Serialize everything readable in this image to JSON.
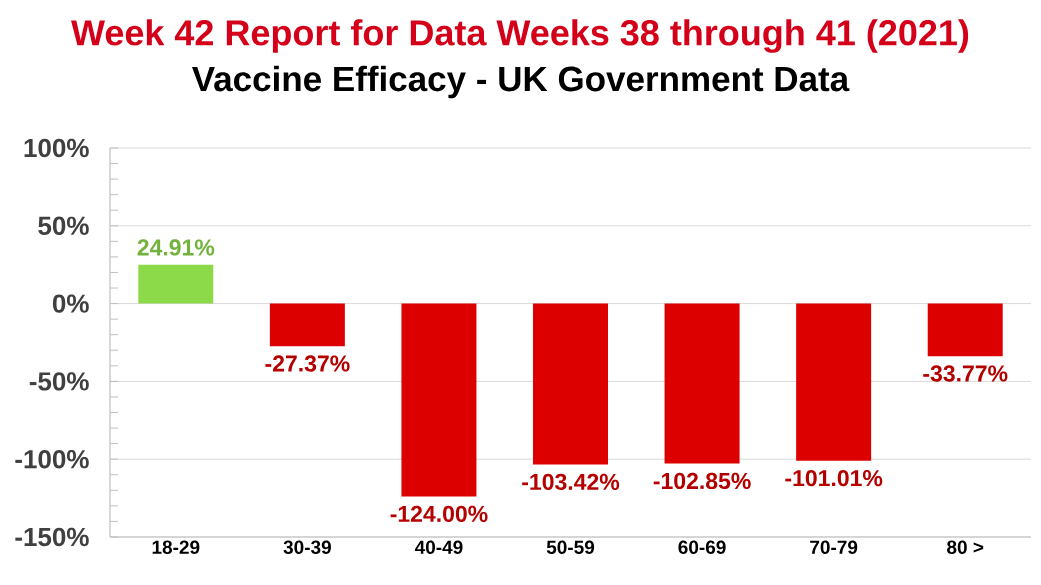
{
  "chart_data": {
    "type": "bar",
    "title": "Week 42 Report for Data Weeks 38 through 41 (2021)",
    "subtitle": "Vaccine Efficacy - UK Government Data",
    "categories": [
      "18-29",
      "30-39",
      "40-49",
      "50-59",
      "60-69",
      "70-79",
      "80 >"
    ],
    "values": [
      24.91,
      -27.37,
      -124.0,
      -103.42,
      -102.85,
      -101.01,
      -33.77
    ],
    "colors": [
      "#8cd94a",
      "#dd0000",
      "#dd0000",
      "#dd0000",
      "#dd0000",
      "#dd0000",
      "#dd0000"
    ],
    "value_labels": [
      "24.91%",
      "-27.37%",
      "-124.00%",
      "-103.42%",
      "-102.85%",
      "-101.01%",
      "-33.77%"
    ],
    "ylim": [
      -150,
      100
    ],
    "yticks": [
      {
        "value": -150,
        "label": "-150%"
      },
      {
        "value": -100,
        "label": "-100%"
      },
      {
        "value": -50,
        "label": "-50%"
      },
      {
        "value": 0,
        "label": "0%"
      },
      {
        "value": 50,
        "label": "50%"
      },
      {
        "value": 100,
        "label": "100%"
      }
    ],
    "grid": "y"
  }
}
